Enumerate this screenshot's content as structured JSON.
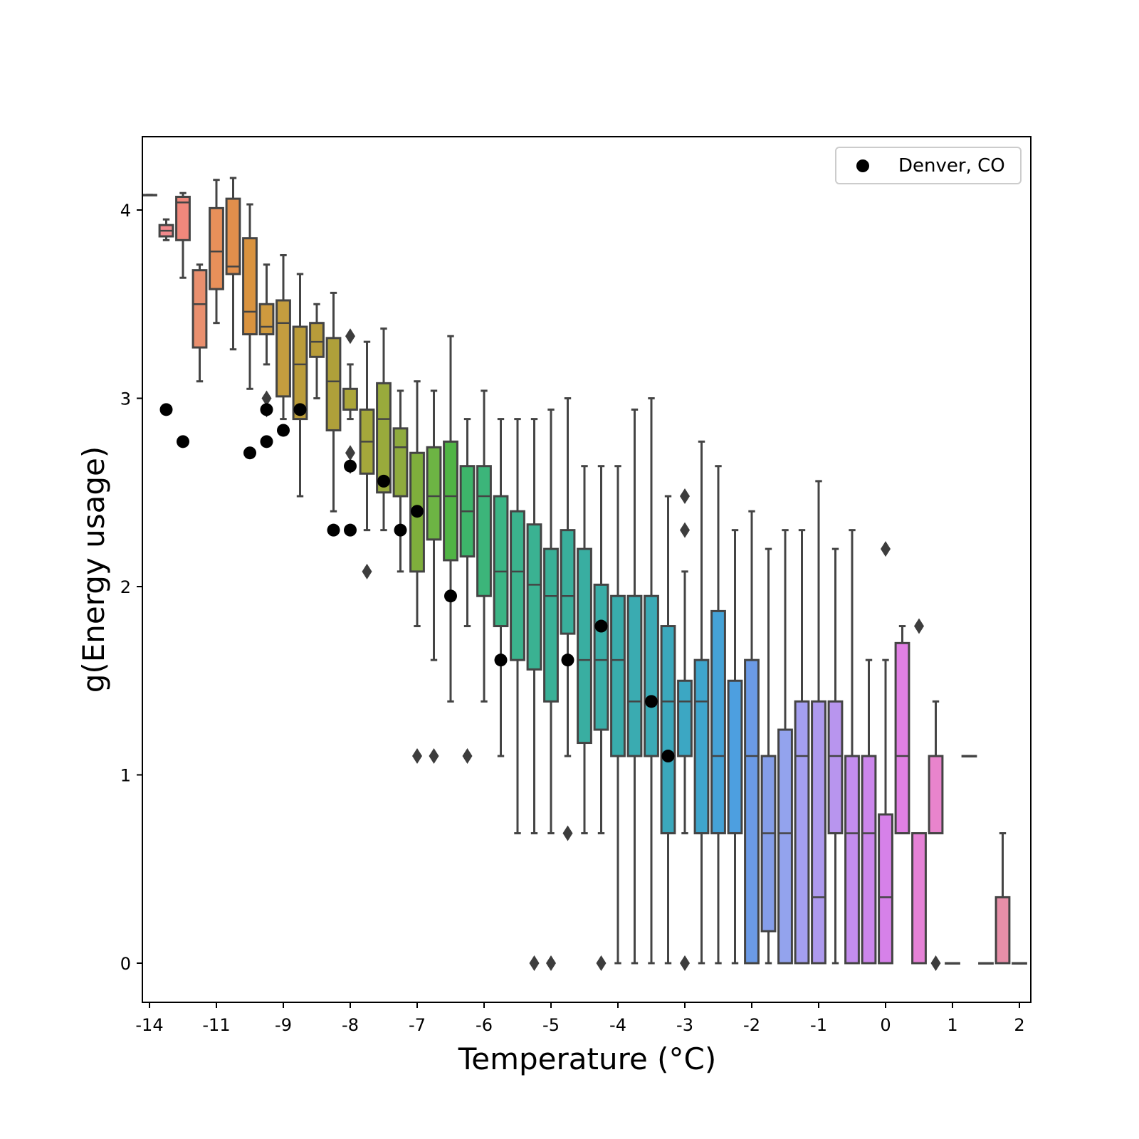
{
  "chart_data": {
    "type": "box",
    "xlabel": "Temperature (°C)",
    "ylabel": "g(Energy usage)",
    "ylim": [
      -0.2,
      4.4
    ],
    "grid": false,
    "legend": {
      "placement": "top-right",
      "entries": [
        "Denver, CO"
      ]
    },
    "x_ticks": [
      {
        "label": "-14",
        "pos": -0.5
      },
      {
        "label": "-11",
        "pos": 3.5
      },
      {
        "label": "-9",
        "pos": 7.5
      },
      {
        "label": "-8",
        "pos": 11.5
      },
      {
        "label": "-7",
        "pos": 15.5
      },
      {
        "label": "-6",
        "pos": 19.5
      },
      {
        "label": "-5",
        "pos": 23.5
      },
      {
        "label": "-4",
        "pos": 27.5
      },
      {
        "label": "-3",
        "pos": 31.5
      },
      {
        "label": "-2",
        "pos": 35.5
      },
      {
        "label": "-1",
        "pos": 39.5
      },
      {
        "label": "0",
        "pos": 43.5
      },
      {
        "label": "1",
        "pos": 47.5
      },
      {
        "label": "2",
        "pos": 51.5
      }
    ],
    "y_ticks": [
      0,
      1,
      2,
      3,
      4
    ],
    "boxes": [
      {
        "pos": -0.5,
        "lw": 4.08,
        "q1": 4.08,
        "med": 4.08,
        "q3": 4.08,
        "uw": 4.08,
        "color": "#e89aa3"
      },
      {
        "pos": 0.5,
        "lw": 3.84,
        "q1": 3.86,
        "med": 3.89,
        "q3": 3.92,
        "uw": 3.95,
        "color": "#f1898c"
      },
      {
        "pos": 1.5,
        "lw": 3.64,
        "q1": 3.84,
        "med": 4.04,
        "q3": 4.07,
        "uw": 4.09,
        "color": "#f0887c"
      },
      {
        "pos": 2.5,
        "lw": 3.09,
        "q1": 3.27,
        "med": 3.5,
        "q3": 3.68,
        "uw": 3.71,
        "color": "#e98f6e"
      },
      {
        "pos": 3.5,
        "lw": 3.4,
        "q1": 3.58,
        "med": 3.78,
        "q3": 4.01,
        "uw": 4.16,
        "color": "#e8905a"
      },
      {
        "pos": 4.5,
        "lw": 3.26,
        "q1": 3.66,
        "med": 3.7,
        "q3": 4.06,
        "uw": 4.17,
        "color": "#e18f4c"
      },
      {
        "pos": 5.5,
        "lw": 3.05,
        "q1": 3.34,
        "med": 3.46,
        "q3": 3.85,
        "uw": 4.03,
        "color": "#d9933f"
      },
      {
        "pos": 6.5,
        "lw": 3.18,
        "q1": 3.34,
        "med": 3.38,
        "q3": 3.5,
        "uw": 3.71,
        "color": "#cf9a3e"
      },
      {
        "pos": 7.5,
        "lw": 2.89,
        "q1": 3.01,
        "med": 3.4,
        "q3": 3.52,
        "uw": 3.76,
        "color": "#c49d3f"
      },
      {
        "pos": 8.5,
        "lw": 2.48,
        "q1": 2.89,
        "med": 3.18,
        "q3": 3.38,
        "uw": 3.66,
        "color": "#bb9c3a"
      },
      {
        "pos": 9.5,
        "lw": 3.0,
        "q1": 3.22,
        "med": 3.3,
        "q3": 3.4,
        "uw": 3.5,
        "color": "#b89c3a"
      },
      {
        "pos": 10.5,
        "lw": 2.4,
        "q1": 2.83,
        "med": 3.09,
        "q3": 3.32,
        "uw": 3.56,
        "color": "#afa03a"
      },
      {
        "pos": 11.5,
        "lw": 2.89,
        "q1": 2.94,
        "med": 2.94,
        "q3": 3.05,
        "uw": 3.18,
        "color": "#aca63a"
      },
      {
        "pos": 12.5,
        "lw": 2.3,
        "q1": 2.6,
        "med": 2.77,
        "q3": 2.94,
        "uw": 3.3,
        "color": "#a5a83b"
      },
      {
        "pos": 13.5,
        "lw": 2.3,
        "q1": 2.5,
        "med": 2.89,
        "q3": 3.08,
        "uw": 3.37,
        "color": "#99aa3c"
      },
      {
        "pos": 14.5,
        "lw": 2.08,
        "q1": 2.48,
        "med": 2.74,
        "q3": 2.84,
        "uw": 3.04,
        "color": "#8fab3e"
      },
      {
        "pos": 15.5,
        "lw": 1.79,
        "q1": 2.08,
        "med": 2.4,
        "q3": 2.71,
        "uw": 3.09,
        "color": "#7fae3c"
      },
      {
        "pos": 16.5,
        "lw": 1.61,
        "q1": 2.25,
        "med": 2.48,
        "q3": 2.74,
        "uw": 3.04,
        "color": "#6db444"
      },
      {
        "pos": 17.5,
        "lw": 1.39,
        "q1": 2.14,
        "med": 2.48,
        "q3": 2.77,
        "uw": 3.33,
        "color": "#50b445"
      },
      {
        "pos": 18.5,
        "lw": 1.79,
        "q1": 2.16,
        "med": 2.4,
        "q3": 2.64,
        "uw": 2.89,
        "color": "#3db56a"
      },
      {
        "pos": 19.5,
        "lw": 1.39,
        "q1": 1.95,
        "med": 2.48,
        "q3": 2.64,
        "uw": 3.04,
        "color": "#3cb57a"
      },
      {
        "pos": 20.5,
        "lw": 1.1,
        "q1": 1.79,
        "med": 2.08,
        "q3": 2.48,
        "uw": 2.89,
        "color": "#3bb585"
      },
      {
        "pos": 21.5,
        "lw": 0.69,
        "q1": 1.61,
        "med": 2.08,
        "q3": 2.4,
        "uw": 2.89,
        "color": "#3bb38d"
      },
      {
        "pos": 22.5,
        "lw": 0.69,
        "q1": 1.56,
        "med": 2.01,
        "q3": 2.33,
        "uw": 2.89,
        "color": "#3ab292"
      },
      {
        "pos": 23.5,
        "lw": 0.69,
        "q1": 1.39,
        "med": 1.95,
        "q3": 2.2,
        "uw": 2.94,
        "color": "#39b097"
      },
      {
        "pos": 24.5,
        "lw": 1.1,
        "q1": 1.75,
        "med": 1.95,
        "q3": 2.3,
        "uw": 3.0,
        "color": "#39af9c"
      },
      {
        "pos": 25.5,
        "lw": 0.69,
        "q1": 1.17,
        "med": 1.61,
        "q3": 2.2,
        "uw": 2.64,
        "color": "#39aea1"
      },
      {
        "pos": 26.5,
        "lw": 0.69,
        "q1": 1.24,
        "med": 1.61,
        "q3": 2.01,
        "uw": 2.64,
        "color": "#3aada7"
      },
      {
        "pos": 27.5,
        "lw": 0.0,
        "q1": 1.1,
        "med": 1.61,
        "q3": 1.95,
        "uw": 2.64,
        "color": "#39acac"
      },
      {
        "pos": 28.5,
        "lw": 0.0,
        "q1": 1.1,
        "med": 1.39,
        "q3": 1.95,
        "uw": 2.94,
        "color": "#3aabb1"
      },
      {
        "pos": 29.5,
        "lw": 0.0,
        "q1": 1.1,
        "med": 1.39,
        "q3": 1.95,
        "uw": 3.0,
        "color": "#3baab6"
      },
      {
        "pos": 30.5,
        "lw": 0.0,
        "q1": 0.69,
        "med": 1.39,
        "q3": 1.79,
        "uw": 2.48,
        "color": "#3ba8bc"
      },
      {
        "pos": 31.5,
        "lw": 0.69,
        "q1": 1.1,
        "med": 1.39,
        "q3": 1.5,
        "uw": 2.08,
        "color": "#3ca7c3"
      },
      {
        "pos": 32.5,
        "lw": 0.0,
        "q1": 0.69,
        "med": 1.39,
        "q3": 1.61,
        "uw": 2.77,
        "color": "#3fa5cc"
      },
      {
        "pos": 33.5,
        "lw": 0.0,
        "q1": 0.69,
        "med": 1.1,
        "q3": 1.87,
        "uw": 2.64,
        "color": "#45a2d6"
      },
      {
        "pos": 34.5,
        "lw": 0.0,
        "q1": 0.69,
        "med": 0.69,
        "q3": 1.5,
        "uw": 2.3,
        "color": "#4d9fe0"
      },
      {
        "pos": 35.5,
        "lw": 0.0,
        "q1": 0.0,
        "med": 1.1,
        "q3": 1.61,
        "uw": 2.4,
        "color": "#6b9ae6"
      },
      {
        "pos": 36.5,
        "lw": 0.0,
        "q1": 0.17,
        "med": 0.69,
        "q3": 1.1,
        "uw": 2.2,
        "color": "#859ee9"
      },
      {
        "pos": 37.5,
        "lw": 0.0,
        "q1": 0.0,
        "med": 0.69,
        "q3": 1.24,
        "uw": 2.3,
        "color": "#93a3ed"
      },
      {
        "pos": 38.5,
        "lw": 0.0,
        "q1": 0.0,
        "med": 1.1,
        "q3": 1.39,
        "uw": 2.3,
        "color": "#a49ff0"
      },
      {
        "pos": 39.5,
        "lw": 0.0,
        "q1": 0.0,
        "med": 0.35,
        "q3": 1.39,
        "uw": 2.56,
        "color": "#ae9aee"
      },
      {
        "pos": 40.5,
        "lw": 0.0,
        "q1": 0.69,
        "med": 1.1,
        "q3": 1.39,
        "uw": 2.2,
        "color": "#b895ee"
      },
      {
        "pos": 41.5,
        "lw": 0.0,
        "q1": 0.0,
        "med": 0.69,
        "q3": 1.1,
        "uw": 2.3,
        "color": "#c38ded"
      },
      {
        "pos": 42.5,
        "lw": 0.0,
        "q1": 0.0,
        "med": 0.69,
        "q3": 1.1,
        "uw": 1.61,
        "color": "#cc87ec"
      },
      {
        "pos": 43.5,
        "lw": 0.0,
        "q1": 0.0,
        "med": 0.35,
        "q3": 0.79,
        "uw": 1.61,
        "color": "#d681e9"
      },
      {
        "pos": 44.5,
        "lw": 0.69,
        "q1": 0.69,
        "med": 1.1,
        "q3": 1.7,
        "uw": 1.79,
        "color": "#e180e4"
      },
      {
        "pos": 45.5,
        "lw": 0.0,
        "q1": 0.0,
        "med": 0.0,
        "q3": 0.69,
        "uw": 0.69,
        "color": "#e582d6"
      },
      {
        "pos": 46.5,
        "lw": 0.69,
        "q1": 0.69,
        "med": 0.69,
        "q3": 1.1,
        "uw": 1.39,
        "color": "#e884cc"
      },
      {
        "pos": 47.5,
        "lw": 0.0,
        "q1": 0.0,
        "med": 0.0,
        "q3": 0.0,
        "uw": 0.0,
        "color": "#e887c2"
      },
      {
        "pos": 48.5,
        "lw": 1.1,
        "q1": 1.1,
        "med": 1.1,
        "q3": 1.1,
        "uw": 1.1,
        "color": "#e98ab8"
      },
      {
        "pos": 49.5,
        "lw": 0.0,
        "q1": 0.0,
        "med": 0.0,
        "q3": 0.0,
        "uw": 0.0,
        "color": "#e98cb0"
      },
      {
        "pos": 50.5,
        "lw": 0.0,
        "q1": 0.0,
        "med": 0.0,
        "q3": 0.35,
        "uw": 0.69,
        "color": "#e78fa8"
      },
      {
        "pos": 51.5,
        "lw": 0.0,
        "q1": 0.0,
        "med": 0.0,
        "q3": 0.0,
        "uw": 0.0,
        "color": "#e792a2"
      }
    ],
    "outliers": [
      {
        "pos": 6.5,
        "y": 3.0
      },
      {
        "pos": 6.5,
        "y": 2.94
      },
      {
        "pos": 11.5,
        "y": 3.33
      },
      {
        "pos": 11.5,
        "y": 2.71
      },
      {
        "pos": 11.5,
        "y": 2.64
      },
      {
        "pos": 12.5,
        "y": 2.08
      },
      {
        "pos": 15.5,
        "y": 1.1
      },
      {
        "pos": 16.5,
        "y": 1.1
      },
      {
        "pos": 18.5,
        "y": 1.1
      },
      {
        "pos": 22.5,
        "y": 0.0
      },
      {
        "pos": 23.5,
        "y": 0.0
      },
      {
        "pos": 24.5,
        "y": 0.69
      },
      {
        "pos": 26.5,
        "y": 0.0
      },
      {
        "pos": 31.5,
        "y": 2.48
      },
      {
        "pos": 31.5,
        "y": 2.3
      },
      {
        "pos": 31.5,
        "y": 0.0
      },
      {
        "pos": 43.5,
        "y": 2.2
      },
      {
        "pos": 45.5,
        "y": 1.79
      },
      {
        "pos": 46.5,
        "y": 0.0
      }
    ],
    "series": [
      {
        "name": "Denver, CO",
        "points": [
          {
            "pos": 0.5,
            "y": 2.94
          },
          {
            "pos": 1.5,
            "y": 2.77
          },
          {
            "pos": 5.5,
            "y": 2.71
          },
          {
            "pos": 6.5,
            "y": 2.77
          },
          {
            "pos": 6.5,
            "y": 2.94
          },
          {
            "pos": 7.5,
            "y": 2.83
          },
          {
            "pos": 8.5,
            "y": 2.94
          },
          {
            "pos": 10.5,
            "y": 2.3
          },
          {
            "pos": 11.5,
            "y": 2.3
          },
          {
            "pos": 11.5,
            "y": 2.64
          },
          {
            "pos": 13.5,
            "y": 2.56
          },
          {
            "pos": 14.5,
            "y": 2.3
          },
          {
            "pos": 15.5,
            "y": 2.4
          },
          {
            "pos": 17.5,
            "y": 1.95
          },
          {
            "pos": 20.5,
            "y": 1.61
          },
          {
            "pos": 24.5,
            "y": 1.61
          },
          {
            "pos": 26.5,
            "y": 1.79
          },
          {
            "pos": 29.5,
            "y": 1.39
          },
          {
            "pos": 30.5,
            "y": 1.1
          }
        ]
      }
    ]
  }
}
